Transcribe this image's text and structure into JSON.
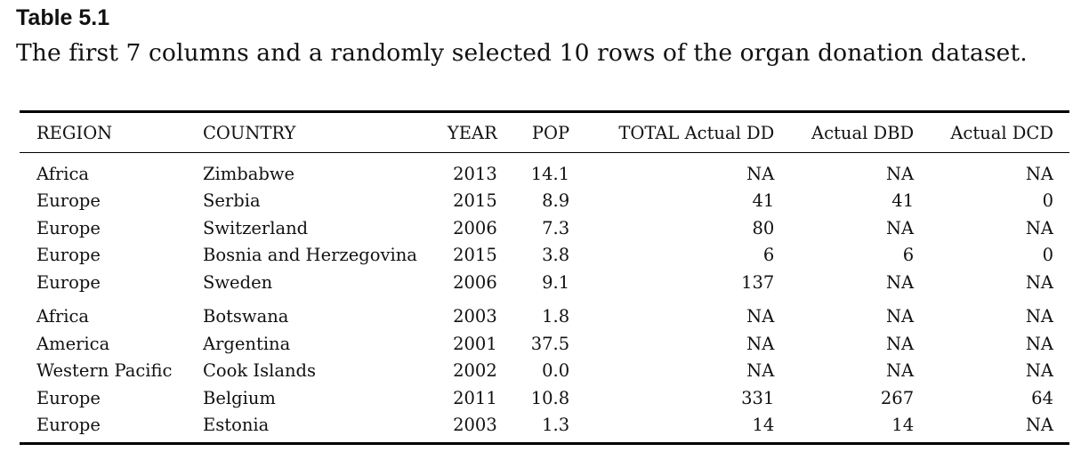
{
  "table_label": "Table 5.1",
  "caption": "The first 7 columns and a randomly selected 10 rows of the organ donation dataset.",
  "columns": [
    "REGION",
    "COUNTRY",
    "YEAR",
    "POP",
    "TOTAL Actual DD",
    "Actual DBD",
    "Actual DCD"
  ],
  "groups": [
    {
      "rows": [
        [
          "Africa",
          "Zimbabwe",
          "2013",
          "14.1",
          "NA",
          "NA",
          "NA"
        ],
        [
          "Europe",
          "Serbia",
          "2015",
          "8.9",
          "41",
          "41",
          "0"
        ],
        [
          "Europe",
          "Switzerland",
          "2006",
          "7.3",
          "80",
          "NA",
          "NA"
        ],
        [
          "Europe",
          "Bosnia and Herzegovina",
          "2015",
          "3.8",
          "6",
          "6",
          "0"
        ],
        [
          "Europe",
          "Sweden",
          "2006",
          "9.1",
          "137",
          "NA",
          "NA"
        ]
      ]
    },
    {
      "rows": [
        [
          "Africa",
          "Botswana",
          "2003",
          "1.8",
          "NA",
          "NA",
          "NA"
        ],
        [
          "America",
          "Argentina",
          "2001",
          "37.5",
          "NA",
          "NA",
          "NA"
        ],
        [
          "Western Pacific",
          "Cook Islands",
          "2002",
          "0.0",
          "NA",
          "NA",
          "NA"
        ],
        [
          "Europe",
          "Belgium",
          "2011",
          "10.8",
          "331",
          "267",
          "64"
        ],
        [
          "Europe",
          "Estonia",
          "2003",
          "1.3",
          "14",
          "14",
          "NA"
        ]
      ]
    }
  ]
}
